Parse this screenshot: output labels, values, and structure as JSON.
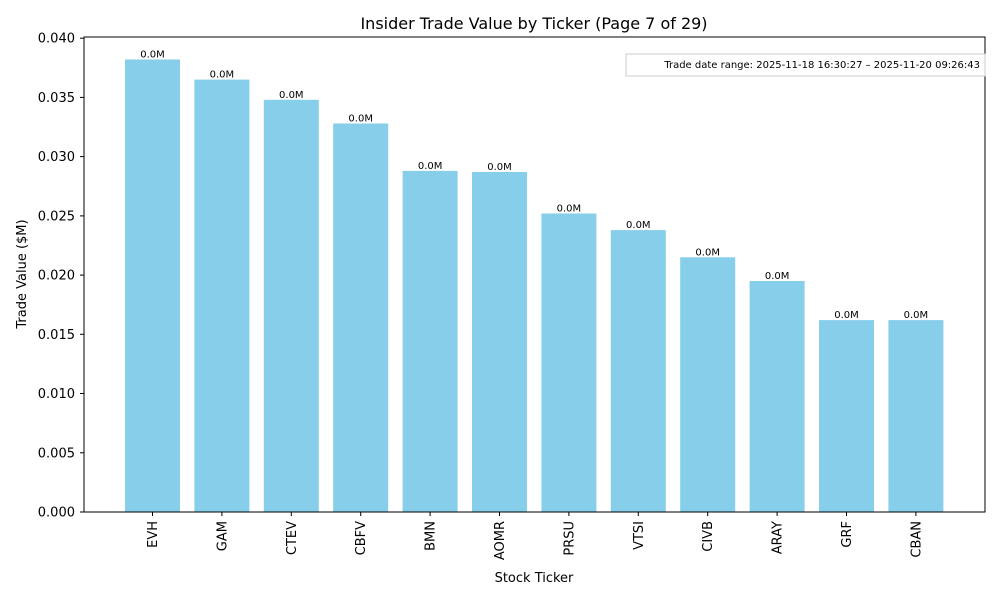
{
  "chart_data": {
    "type": "bar",
    "title": "Insider Trade Value by Ticker (Page 7 of 29)",
    "xlabel": "Stock Ticker",
    "ylabel": "Trade Value ($M)",
    "ylim": [
      0,
      0.0401
    ],
    "yticks": [
      "0.000",
      "0.005",
      "0.010",
      "0.015",
      "0.020",
      "0.025",
      "0.030",
      "0.035",
      "0.040"
    ],
    "ytick_values": [
      0,
      0.005,
      0.01,
      0.015,
      0.02,
      0.025,
      0.03,
      0.035,
      0.04
    ],
    "categories": [
      "EVH",
      "GAM",
      "CTEV",
      "CBFV",
      "BMN",
      "AOMR",
      "PRSU",
      "VTSI",
      "CIVB",
      "ARAY",
      "GRF",
      "CBAN"
    ],
    "values": [
      0.0382,
      0.0365,
      0.0348,
      0.0328,
      0.0288,
      0.0287,
      0.0252,
      0.0238,
      0.0215,
      0.0195,
      0.0162,
      0.0162
    ],
    "data_labels": [
      "0.0M",
      "0.0M",
      "0.0M",
      "0.0M",
      "0.0M",
      "0.0M",
      "0.0M",
      "0.0M",
      "0.0M",
      "0.0M",
      "0.0M",
      "0.0M"
    ],
    "annotation": "Trade date range: 2025-11-18 16:30:27 – 2025-11-20 09:26:43",
    "bar_color": "#87ceeb",
    "grid": false
  }
}
